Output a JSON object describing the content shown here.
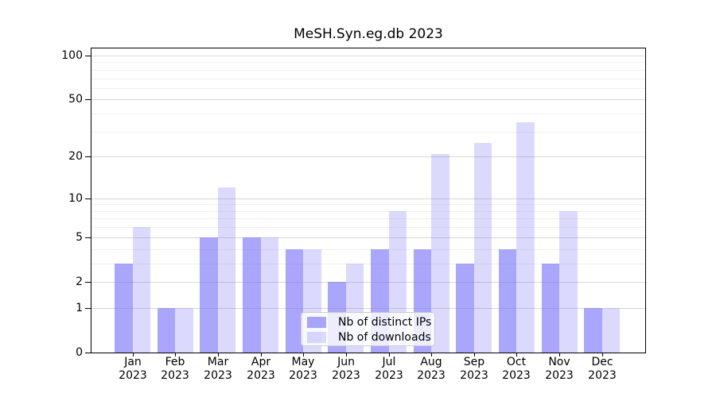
{
  "chart_data": {
    "type": "bar",
    "title": "MeSH.Syn.eg.db 2023",
    "categories": [
      "Jan",
      "Feb",
      "Mar",
      "Apr",
      "May",
      "Jun",
      "Jul",
      "Aug",
      "Sep",
      "Oct",
      "Nov",
      "Dec"
    ],
    "year_label": "2023",
    "series": [
      {
        "name": "Nb of distinct IPs",
        "key": "ips",
        "color": "rgba(116,112,248,0.62)",
        "values": [
          3,
          1,
          5,
          5,
          4,
          2,
          4,
          4,
          3,
          4,
          3,
          1
        ]
      },
      {
        "name": "Nb of downloads",
        "key": "downloads",
        "color": "rgba(116,112,248,0.26)",
        "values": [
          6,
          1,
          12,
          5,
          4,
          3,
          8,
          21,
          25,
          35,
          8,
          1
        ]
      }
    ],
    "xlabel": "",
    "ylabel": "",
    "y_scale": "log1p",
    "ylim": [
      0,
      100
    ],
    "y_ticks": [
      0,
      1,
      2,
      5,
      10,
      20,
      50,
      100
    ],
    "y_minor_ticks": [
      3,
      4,
      6,
      7,
      8,
      9,
      30,
      40,
      60,
      70,
      80,
      90
    ],
    "grid": "on",
    "legend_position": "lower center",
    "colors": {
      "axis": "#000000",
      "major_grid": "#d7d7d7",
      "minor_grid": "#efefef",
      "text": "#000000",
      "background": "#ffffff"
    }
  }
}
